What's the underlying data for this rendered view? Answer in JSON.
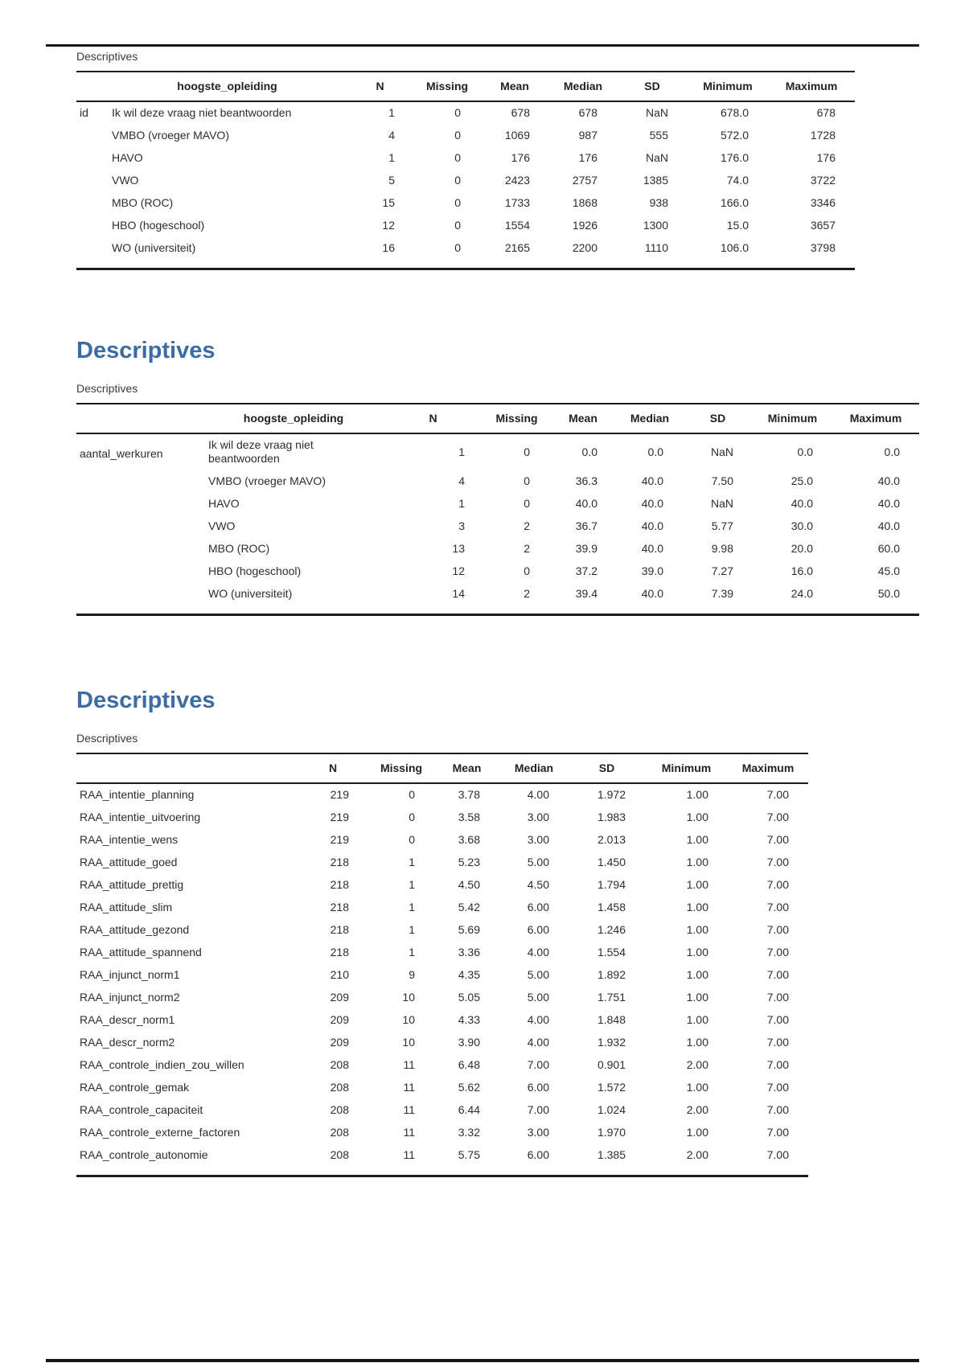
{
  "colors": {
    "heading_blue": "#3d6ca5",
    "rule_black": "#161616",
    "text": "#2d2d2d"
  },
  "sections": [
    {
      "heading": "",
      "table_title": "Descriptives",
      "row_group": "id",
      "columns": [
        "hoogste_opleiding",
        "N",
        "Missing",
        "Mean",
        "Median",
        "SD",
        "Minimum",
        "Maximum"
      ],
      "rows": [
        [
          "Ik wil deze vraag niet beantwoorden",
          "1",
          "0",
          "678",
          "678",
          "NaN",
          "678.0",
          "678"
        ],
        [
          "VMBO (vroeger MAVO)",
          "4",
          "0",
          "1069",
          "987",
          "555",
          "572.0",
          "1728"
        ],
        [
          "HAVO",
          "1",
          "0",
          "176",
          "176",
          "NaN",
          "176.0",
          "176"
        ],
        [
          "VWO",
          "5",
          "0",
          "2423",
          "2757",
          "1385",
          "74.0",
          "3722"
        ],
        [
          "MBO (ROC)",
          "15",
          "0",
          "1733",
          "1868",
          "938",
          "166.0",
          "3346"
        ],
        [
          "HBO (hogeschool)",
          "12",
          "0",
          "1554",
          "1926",
          "1300",
          "15.0",
          "3657"
        ],
        [
          "WO (universiteit)",
          "16",
          "0",
          "2165",
          "2200",
          "1110",
          "106.0",
          "3798"
        ]
      ]
    },
    {
      "heading": "Descriptives",
      "table_title": "Descriptives",
      "row_group": "aantal_werkuren",
      "columns": [
        "hoogste_opleiding",
        "N",
        "Missing",
        "Mean",
        "Median",
        "SD",
        "Minimum",
        "Maximum"
      ],
      "rows": [
        [
          "Ik wil deze vraag niet beantwoorden",
          "1",
          "0",
          "0.0",
          "0.0",
          "NaN",
          "0.0",
          "0.0"
        ],
        [
          "VMBO (vroeger MAVO)",
          "4",
          "0",
          "36.3",
          "40.0",
          "7.50",
          "25.0",
          "40.0"
        ],
        [
          "HAVO",
          "1",
          "0",
          "40.0",
          "40.0",
          "NaN",
          "40.0",
          "40.0"
        ],
        [
          "VWO",
          "3",
          "2",
          "36.7",
          "40.0",
          "5.77",
          "30.0",
          "40.0"
        ],
        [
          "MBO (ROC)",
          "13",
          "2",
          "39.9",
          "40.0",
          "9.98",
          "20.0",
          "60.0"
        ],
        [
          "HBO (hogeschool)",
          "12",
          "0",
          "37.2",
          "39.0",
          "7.27",
          "16.0",
          "45.0"
        ],
        [
          "WO (universiteit)",
          "14",
          "2",
          "39.4",
          "40.0",
          "7.39",
          "24.0",
          "50.0"
        ]
      ]
    },
    {
      "heading": "Descriptives",
      "table_title": "Descriptives",
      "row_group": "",
      "columns": [
        "",
        "N",
        "Missing",
        "Mean",
        "Median",
        "SD",
        "Minimum",
        "Maximum"
      ],
      "rows": [
        [
          "RAA_intentie_planning",
          "219",
          "0",
          "3.78",
          "4.00",
          "1.972",
          "1.00",
          "7.00"
        ],
        [
          "RAA_intentie_uitvoering",
          "219",
          "0",
          "3.58",
          "3.00",
          "1.983",
          "1.00",
          "7.00"
        ],
        [
          "RAA_intentie_wens",
          "219",
          "0",
          "3.68",
          "3.00",
          "2.013",
          "1.00",
          "7.00"
        ],
        [
          "RAA_attitude_goed",
          "218",
          "1",
          "5.23",
          "5.00",
          "1.450",
          "1.00",
          "7.00"
        ],
        [
          "RAA_attitude_prettig",
          "218",
          "1",
          "4.50",
          "4.50",
          "1.794",
          "1.00",
          "7.00"
        ],
        [
          "RAA_attitude_slim",
          "218",
          "1",
          "5.42",
          "6.00",
          "1.458",
          "1.00",
          "7.00"
        ],
        [
          "RAA_attitude_gezond",
          "218",
          "1",
          "5.69",
          "6.00",
          "1.246",
          "1.00",
          "7.00"
        ],
        [
          "RAA_attitude_spannend",
          "218",
          "1",
          "3.36",
          "4.00",
          "1.554",
          "1.00",
          "7.00"
        ],
        [
          "RAA_injunct_norm1",
          "210",
          "9",
          "4.35",
          "5.00",
          "1.892",
          "1.00",
          "7.00"
        ],
        [
          "RAA_injunct_norm2",
          "209",
          "10",
          "5.05",
          "5.00",
          "1.751",
          "1.00",
          "7.00"
        ],
        [
          "RAA_descr_norm1",
          "209",
          "10",
          "4.33",
          "4.00",
          "1.848",
          "1.00",
          "7.00"
        ],
        [
          "RAA_descr_norm2",
          "209",
          "10",
          "3.90",
          "4.00",
          "1.932",
          "1.00",
          "7.00"
        ],
        [
          "RAA_controle_indien_zou_willen",
          "208",
          "11",
          "6.48",
          "7.00",
          "0.901",
          "2.00",
          "7.00"
        ],
        [
          "RAA_controle_gemak",
          "208",
          "11",
          "5.62",
          "6.00",
          "1.572",
          "1.00",
          "7.00"
        ],
        [
          "RAA_controle_capaciteit",
          "208",
          "11",
          "6.44",
          "7.00",
          "1.024",
          "2.00",
          "7.00"
        ],
        [
          "RAA_controle_externe_factoren",
          "208",
          "11",
          "3.32",
          "3.00",
          "1.970",
          "1.00",
          "7.00"
        ],
        [
          "RAA_controle_autonomie",
          "208",
          "11",
          "5.75",
          "6.00",
          "1.385",
          "2.00",
          "7.00"
        ]
      ]
    }
  ]
}
